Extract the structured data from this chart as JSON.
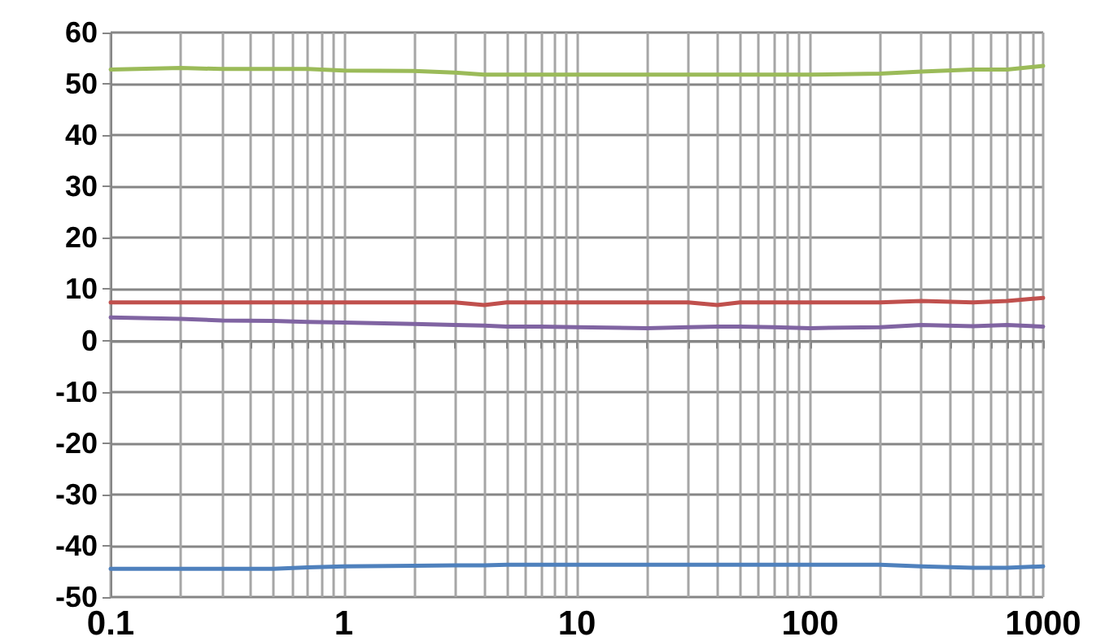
{
  "chart_data": {
    "type": "line",
    "x": [
      0.1,
      0.2,
      0.3,
      0.5,
      0.7,
      1,
      2,
      3,
      4,
      5,
      7,
      10,
      20,
      30,
      40,
      50,
      70,
      100,
      200,
      300,
      500,
      700,
      1000
    ],
    "series": [
      {
        "color": "#9bbb59",
        "values": [
          52.8,
          53.1,
          52.9,
          52.9,
          52.9,
          52.6,
          52.5,
          52.2,
          51.8,
          51.8,
          51.8,
          51.8,
          51.8,
          51.8,
          51.8,
          51.8,
          51.8,
          51.8,
          52.0,
          52.4,
          52.8,
          52.8,
          53.5
        ]
      },
      {
        "color": "#c0504d",
        "values": [
          7.4,
          7.4,
          7.4,
          7.4,
          7.4,
          7.4,
          7.4,
          7.4,
          6.9,
          7.4,
          7.4,
          7.4,
          7.4,
          7.4,
          6.9,
          7.4,
          7.4,
          7.4,
          7.4,
          7.7,
          7.4,
          7.7,
          8.3
        ]
      },
      {
        "color": "#8064a2",
        "values": [
          4.5,
          4.2,
          3.9,
          3.8,
          3.6,
          3.5,
          3.2,
          3.0,
          2.9,
          2.7,
          2.7,
          2.6,
          2.4,
          2.6,
          2.7,
          2.7,
          2.6,
          2.4,
          2.6,
          3.0,
          2.8,
          3.0,
          2.7
        ]
      },
      {
        "color": "#4f81bd",
        "values": [
          -44.5,
          -44.5,
          -44.5,
          -44.5,
          -44.2,
          -44.0,
          -43.9,
          -43.8,
          -43.8,
          -43.7,
          -43.7,
          -43.7,
          -43.7,
          -43.7,
          -43.7,
          -43.7,
          -43.7,
          -43.7,
          -43.7,
          -44.0,
          -44.3,
          -44.3,
          -44.0
        ]
      }
    ],
    "log": "x",
    "xlim": [
      0.1,
      1000
    ],
    "xticks": [
      0.1,
      {
        "value": 0.2,
        "label": null
      },
      {
        "value": 0.3,
        "label": null
      },
      {
        "value": 0.4,
        "label": null
      },
      {
        "value": 0.5,
        "label": null
      },
      {
        "value": 0.6,
        "label": null
      },
      {
        "value": 0.7,
        "label": null
      },
      {
        "value": 0.8,
        "label": null
      },
      {
        "value": 0.9,
        "label": null
      },
      1,
      {
        "value": 2,
        "label": null
      },
      {
        "value": 3,
        "label": null
      },
      {
        "value": 4,
        "label": null
      },
      {
        "value": 5,
        "label": null
      },
      {
        "value": 6,
        "label": null
      },
      {
        "value": 7,
        "label": null
      },
      {
        "value": 8,
        "label": null
      },
      {
        "value": 9,
        "label": null
      },
      10,
      {
        "value": 20,
        "label": null
      },
      {
        "value": 30,
        "label": null
      },
      {
        "value": 40,
        "label": null
      },
      {
        "value": 50,
        "label": null
      },
      {
        "value": 60,
        "label": null
      },
      {
        "value": 70,
        "label": null
      },
      {
        "value": 80,
        "label": null
      },
      {
        "value": 90,
        "label": null
      },
      100,
      {
        "value": 200,
        "label": null
      },
      {
        "value": 300,
        "label": null
      },
      {
        "value": 400,
        "label": null
      },
      {
        "value": 500,
        "label": null
      },
      {
        "value": 600,
        "label": null
      },
      {
        "value": 700,
        "label": null
      },
      {
        "value": 800,
        "label": null
      },
      {
        "value": 900,
        "label": null
      },
      1000
    ],
    "ylim": [
      -50,
      60
    ],
    "yticks": [
      -50,
      -40,
      -30,
      -20,
      -10,
      0,
      10,
      20,
      30,
      40,
      50,
      60
    ],
    "grid": true,
    "marker": "none",
    "line_style": "solid"
  }
}
